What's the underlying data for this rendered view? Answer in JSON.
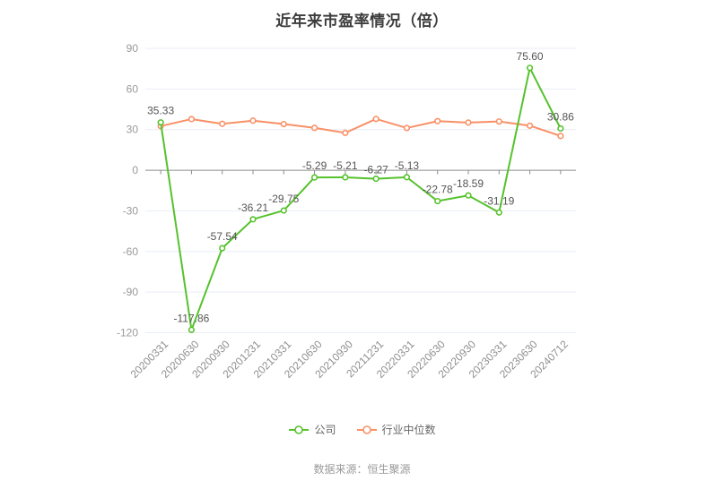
{
  "title": "近年来市盈率情况（倍）",
  "source": "数据来源：恒生聚源",
  "chart_data": {
    "type": "line",
    "title": "近年来市盈率情况（倍）",
    "categories": [
      "20200331",
      "20200630",
      "20200930",
      "20201231",
      "20210331",
      "20210630",
      "20210930",
      "20211231",
      "20220331",
      "20220630",
      "20220930",
      "20230331",
      "20230630",
      "20240712"
    ],
    "series": [
      {
        "name": "公司",
        "color": "#56c22d",
        "labeled": true,
        "values": [
          35.33,
          -117.86,
          -57.54,
          -36.21,
          -29.75,
          -5.29,
          -5.21,
          -6.27,
          -5.13,
          -22.78,
          -18.59,
          -31.19,
          75.6,
          30.86
        ]
      },
      {
        "name": "行业中位数",
        "color": "#f99066",
        "labeled": false,
        "values": [
          32.6,
          37.8,
          34.3,
          36.6,
          34.1,
          31.3,
          27.6,
          37.9,
          31.2,
          36.3,
          35.2,
          36.0,
          32.9,
          25.3
        ]
      }
    ],
    "y_ticks": [
      90,
      60,
      30,
      0,
      -30,
      -60,
      -90,
      -120
    ],
    "ylim": [
      -120,
      90
    ],
    "grid": true,
    "legend_position": "bottom",
    "x_label_rotation": 45
  },
  "style": {
    "grid_color": "#e9eef5",
    "zero_axis_color": "#8c8c8c",
    "axis_label_color": "#999999",
    "data_label_color": "#555555"
  }
}
